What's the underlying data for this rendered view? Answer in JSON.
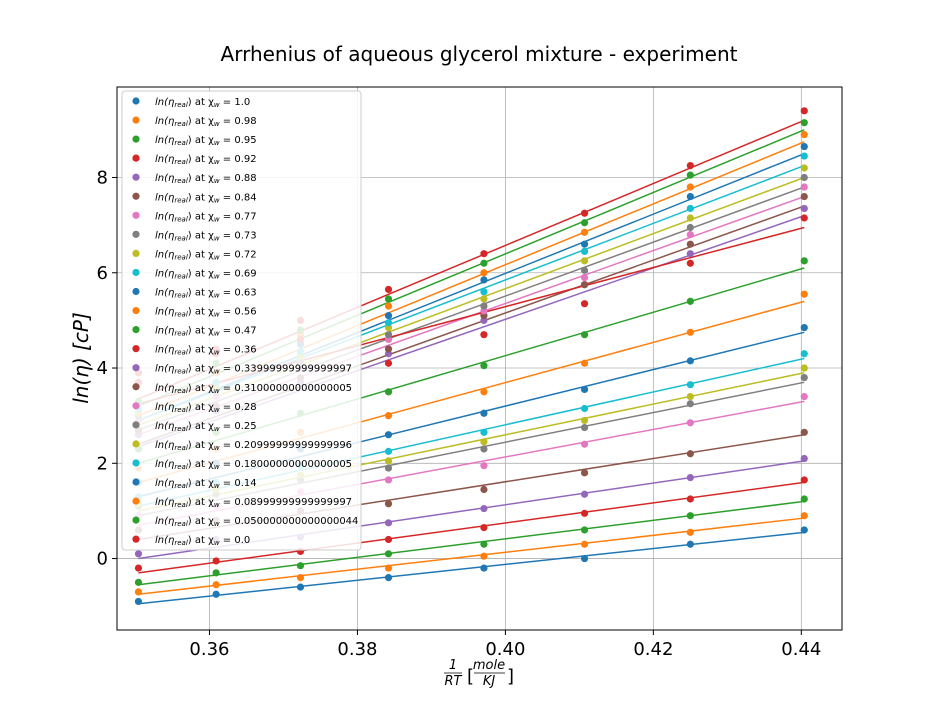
{
  "chart_data": {
    "type": "scatter",
    "title": "Arrhenius of aqueous glycerol mixture - experiment",
    "ylabel": "ln(η)  [cP]",
    "xlabel_fraction": {
      "num": "1",
      "den": "RT"
    },
    "xlabel_unit": {
      "num": "mole",
      "den": "KJ"
    },
    "xlim": [
      0.3475,
      0.4455
    ],
    "ylim": [
      -1.5,
      9.9
    ],
    "xticks": [
      0.36,
      0.38,
      0.4,
      0.42,
      0.44
    ],
    "xtick_labels": [
      "0.36",
      "0.38",
      "0.40",
      "0.42",
      "0.44"
    ],
    "yticks": [
      0,
      2,
      4,
      6,
      8
    ],
    "ytick_labels": [
      "0",
      "2",
      "4",
      "6",
      "8"
    ],
    "grid": true,
    "legend_position": "top-left",
    "legend_prefix": "ln(η",
    "legend_sub": "real",
    "legend_mid": ") at χ",
    "legend_sub2": "w",
    "legend_eq": " = ",
    "x": [
      0.3504,
      0.3609,
      0.3723,
      0.3842,
      0.3971,
      0.4107,
      0.425,
      0.4404
    ],
    "series": [
      {
        "name": "1.0",
        "color": "#1f77b4",
        "values": [
          3.0,
          3.7,
          4.5,
          5.1,
          5.85,
          6.6,
          7.6,
          8.65
        ],
        "fit": [
          2.9,
          8.5
        ]
      },
      {
        "name": "0.98",
        "color": "#ff7f0e",
        "values": [
          3.1,
          3.9,
          4.7,
          5.3,
          6.0,
          6.85,
          7.8,
          8.9
        ],
        "fit": [
          3.0,
          8.75
        ]
      },
      {
        "name": "0.95",
        "color": "#2ca02c",
        "values": [
          3.3,
          4.1,
          4.8,
          5.45,
          6.2,
          7.05,
          8.05,
          9.15
        ],
        "fit": [
          3.2,
          9.0
        ]
      },
      {
        "name": "0.92",
        "color": "#d62728",
        "values": [
          3.7,
          4.4,
          5.0,
          5.65,
          6.4,
          7.25,
          8.25,
          9.4
        ],
        "fit": [
          3.35,
          9.2
        ]
      },
      {
        "name": "0.88",
        "color": "#9467bd",
        "values": [
          2.6,
          3.1,
          3.7,
          4.3,
          5.0,
          5.75,
          6.4,
          7.35
        ],
        "fit": [
          2.35,
          7.2
        ]
      },
      {
        "name": "0.84",
        "color": "#8c564b",
        "values": [
          2.7,
          3.2,
          3.8,
          4.4,
          5.1,
          5.75,
          6.6,
          7.6
        ],
        "fit": [
          2.4,
          7.4
        ]
      },
      {
        "name": "0.77",
        "color": "#e377c2",
        "values": [
          2.9,
          3.4,
          4.0,
          4.6,
          5.2,
          5.9,
          6.8,
          7.8
        ],
        "fit": [
          2.6,
          7.6
        ]
      },
      {
        "name": "0.73",
        "color": "#7f7f7f",
        "values": [
          3.0,
          3.5,
          4.1,
          4.7,
          5.3,
          6.05,
          6.95,
          8.0
        ],
        "fit": [
          2.7,
          7.8
        ]
      },
      {
        "name": "0.72",
        "color": "#bcbd22",
        "values": [
          3.05,
          3.6,
          4.25,
          4.85,
          5.45,
          6.25,
          7.15,
          8.2
        ],
        "fit": [
          2.8,
          8.0
        ]
      },
      {
        "name": "0.69",
        "color": "#17becf",
        "values": [
          3.15,
          3.7,
          4.35,
          4.95,
          5.6,
          6.45,
          7.35,
          8.45
        ],
        "fit": [
          2.9,
          8.25
        ]
      },
      {
        "name": "0.63",
        "color": "#1f77b4",
        "values": [
          1.6,
          2.0,
          2.3,
          2.6,
          3.05,
          3.55,
          4.15,
          4.85
        ],
        "fit": [
          1.3,
          4.75
        ]
      },
      {
        "name": "0.56",
        "color": "#ff7f0e",
        "values": [
          1.9,
          2.3,
          2.65,
          3.0,
          3.5,
          4.1,
          4.75,
          5.55
        ],
        "fit": [
          1.6,
          5.4
        ]
      },
      {
        "name": "0.47",
        "color": "#2ca02c",
        "values": [
          2.3,
          2.65,
          3.05,
          3.5,
          4.05,
          4.7,
          5.4,
          6.25
        ],
        "fit": [
          2.0,
          6.1
        ]
      },
      {
        "name": "0.36",
        "color": "#d62728",
        "values": [
          3.9,
          4.3,
          4.6,
          4.1,
          4.7,
          5.35,
          6.2,
          7.15
        ],
        "fit": [
          3.25,
          6.95
        ]
      },
      {
        "name": "0.33999999999999997",
        "color": "#9467bd",
        "values": [
          0.1,
          0.4,
          0.45,
          0.75,
          1.05,
          1.35,
          1.7,
          2.1
        ],
        "fit": [
          0.0,
          2.05
        ]
      },
      {
        "name": "0.31000000000000005",
        "color": "#8c564b",
        "values": [
          0.6,
          0.8,
          1.0,
          1.15,
          1.45,
          1.8,
          2.2,
          2.65
        ],
        "fit": [
          0.4,
          2.6
        ]
      },
      {
        "name": "0.28",
        "color": "#e377c2",
        "values": [
          0.9,
          1.1,
          1.4,
          1.65,
          1.95,
          2.4,
          2.85,
          3.4
        ],
        "fit": [
          0.7,
          3.3
        ]
      },
      {
        "name": "0.25",
        "color": "#7f7f7f",
        "values": [
          1.1,
          1.35,
          1.65,
          1.9,
          2.3,
          2.75,
          3.25,
          3.8
        ],
        "fit": [
          0.9,
          3.7
        ]
      },
      {
        "name": "0.20999999999999996",
        "color": "#bcbd22",
        "values": [
          1.15,
          1.45,
          1.75,
          2.05,
          2.45,
          2.9,
          3.4,
          4.0
        ],
        "fit": [
          1.0,
          3.9
        ]
      },
      {
        "name": "0.18000000000000005",
        "color": "#17becf",
        "values": [
          1.3,
          1.6,
          1.95,
          2.25,
          2.65,
          3.15,
          3.65,
          4.3
        ],
        "fit": [
          1.1,
          4.2
        ]
      },
      {
        "name": "0.14",
        "color": "#1f77b4",
        "values": [
          -0.9,
          -0.75,
          -0.6,
          -0.4,
          -0.2,
          0.0,
          0.3,
          0.6
        ],
        "fit": [
          -0.95,
          0.55
        ]
      },
      {
        "name": "0.08999999999999997",
        "color": "#ff7f0e",
        "values": [
          -0.7,
          -0.55,
          -0.4,
          -0.2,
          0.05,
          0.3,
          0.55,
          0.9
        ],
        "fit": [
          -0.75,
          0.85
        ]
      },
      {
        "name": "0.050000000000000044",
        "color": "#2ca02c",
        "values": [
          -0.5,
          -0.3,
          -0.15,
          0.1,
          0.3,
          0.6,
          0.9,
          1.25
        ],
        "fit": [
          -0.55,
          1.2
        ]
      },
      {
        "name": "0.0",
        "color": "#d62728",
        "values": [
          -0.2,
          -0.05,
          0.15,
          0.4,
          0.65,
          0.95,
          1.25,
          1.65
        ],
        "fit": [
          -0.3,
          1.6
        ]
      }
    ]
  }
}
